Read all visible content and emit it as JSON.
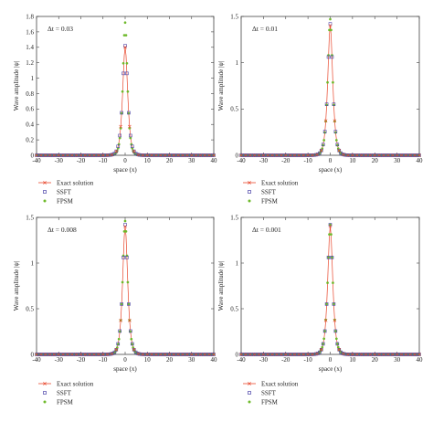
{
  "chart_data": [
    {
      "type": "scatter",
      "annotation": "Δt = 0.03",
      "xlabel": "space (x)",
      "ylabel": "Wave amplitude |ψ|",
      "xlim": [
        -40,
        40
      ],
      "ylim": [
        0,
        1.8
      ],
      "xticks": [
        "-40",
        "-30",
        "-20",
        "-10",
        "0",
        "10",
        "20",
        "30",
        "40"
      ],
      "yticks": [
        "0",
        "0.2",
        "0.4",
        "0.6",
        "0.8",
        "1",
        "1.2",
        "1.4",
        "1.6",
        "1.8"
      ],
      "legend": [
        "Exact solution",
        "SSFT",
        "FPSM"
      ],
      "legend_position": "below-left",
      "series": [
        {
          "name": "Exact solution",
          "marker": "cross-line",
          "peak": 1.4,
          "width": 1.0
        },
        {
          "name": "SSFT",
          "marker": "square",
          "peak": 1.42,
          "width": 1.0
        },
        {
          "name": "FPSM",
          "marker": "dot",
          "peak": 1.72,
          "width": 0.88
        }
      ]
    },
    {
      "type": "scatter",
      "annotation": "Δt = 0.01",
      "xlabel": "space (x)",
      "ylabel": "Wave amplitude |ψ|",
      "xlim": [
        -40,
        40
      ],
      "ylim": [
        0,
        1.5
      ],
      "xticks": [
        "-40",
        "-30",
        "-20",
        "-10",
        "0",
        "10",
        "20",
        "30",
        "40"
      ],
      "yticks": [
        "0",
        "0.5",
        "1",
        "1.5"
      ],
      "legend": [
        "Exact solution",
        "SSFT",
        "FPSM"
      ],
      "legend_position": "below-left",
      "series": [
        {
          "name": "Exact solution",
          "marker": "cross-line",
          "peak": 1.4,
          "width": 1.0
        },
        {
          "name": "SSFT",
          "marker": "square",
          "peak": 1.42,
          "width": 1.0
        },
        {
          "name": "FPSM",
          "marker": "dot",
          "peak": 1.47,
          "width": 0.97
        }
      ]
    },
    {
      "type": "scatter",
      "annotation": "Δt = 0.008",
      "xlabel": "space (x)",
      "ylabel": "Wave amplitude |ψ|",
      "xlim": [
        -40,
        40
      ],
      "ylim": [
        0,
        1.5
      ],
      "xticks": [
        "-40",
        "-30",
        "-20",
        "-10",
        "0",
        "10",
        "20",
        "30",
        "40"
      ],
      "yticks": [
        "0",
        "0.5",
        "1",
        "1.5"
      ],
      "legend": [
        "Exact solution",
        "SSFT",
        "FPSM"
      ],
      "legend_position": "below-left",
      "series": [
        {
          "name": "Exact solution",
          "marker": "cross-line",
          "peak": 1.4,
          "width": 1.0
        },
        {
          "name": "SSFT",
          "marker": "square",
          "peak": 1.42,
          "width": 1.0
        },
        {
          "name": "FPSM",
          "marker": "dot",
          "peak": 1.46,
          "width": 0.98
        }
      ]
    },
    {
      "type": "scatter",
      "annotation": "Δt = 0.001",
      "xlabel": "space (x)",
      "ylabel": "Wave amplitude |ψ|",
      "xlim": [
        -40,
        40
      ],
      "ylim": [
        0,
        1.5
      ],
      "xticks": [
        "-40",
        "-30",
        "-20",
        "-10",
        "0",
        "10",
        "20",
        "30",
        "40"
      ],
      "yticks": [
        "0",
        "0.5",
        "1",
        "1.5"
      ],
      "legend": [
        "Exact solution",
        "SSFT",
        "FPSM"
      ],
      "legend_position": "below-left",
      "series": [
        {
          "name": "Exact solution",
          "marker": "cross-line",
          "peak": 1.4,
          "width": 1.0
        },
        {
          "name": "SSFT",
          "marker": "square",
          "peak": 1.42,
          "width": 1.0
        },
        {
          "name": "FPSM",
          "marker": "dot",
          "peak": 1.42,
          "width": 1.0
        }
      ]
    }
  ],
  "colors": {
    "exact": "#e8472c",
    "ssft": "#4b43a8",
    "fpsm": "#6fba2c",
    "axis": "#444444"
  }
}
